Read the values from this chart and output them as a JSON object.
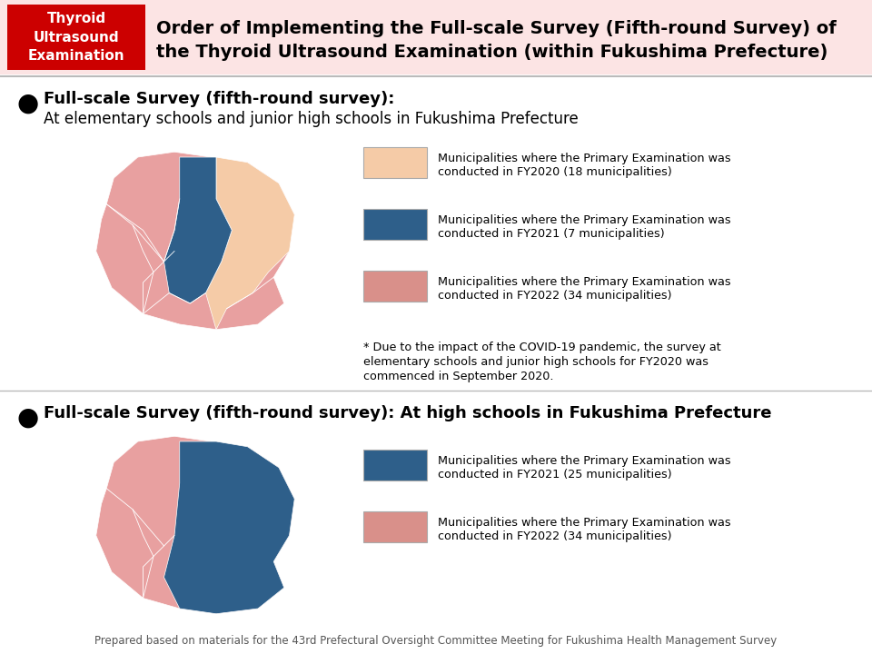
{
  "bg_color": "#ffffff",
  "header_bg": "#fce4e4",
  "header_red_box": "#cc0000",
  "header_red_text": "Thyroid\nUltrasound\nExamination",
  "header_title_line1": "Order of Implementing the Full-scale Survey (Fifth-round Survey) of",
  "header_title_line2": "the Thyroid Ultrasound Examination (within Fukushima Prefecture)",
  "section1_bullet": "●",
  "section1_title": "Full-scale Survey (fifth-round survey):",
  "section1_sub": "At elementary schools and junior high schools in Fukushima Prefecture",
  "legend1": [
    {
      "color": "#f5cba7",
      "label_line1": "Municipalities where the Primary Examination was",
      "label_line2": "conducted in FY2020 (18 municipalities)"
    },
    {
      "color": "#2e5f8a",
      "label_line1": "Municipalities where the Primary Examination was",
      "label_line2": "conducted in FY2021 (7 municipalities)"
    },
    {
      "color": "#d9908a",
      "label_line1": "Municipalities where the Primary Examination was",
      "label_line2": "conducted in FY2022 (34 municipalities)"
    }
  ],
  "note1_line1": "* Due to the impact of the COVID-19 pandemic, the survey at",
  "note1_line2": "elementary schools and junior high schools for FY2020 was",
  "note1_line3": "commenced in September 2020.",
  "section2_bullet": "●",
  "section2_title": "Full-scale Survey (fifth-round survey): At high schools in Fukushima Prefecture",
  "legend2": [
    {
      "color": "#2e5f8a",
      "label_line1": "Municipalities where the Primary Examination was",
      "label_line2": "conducted in FY2021 (25 municipalities)"
    },
    {
      "color": "#d9908a",
      "label_line1": "Municipalities where the Primary Examination was",
      "label_line2": "conducted in FY2022 (34 municipalities)"
    }
  ],
  "footer": "Prepared based on materials for the 43rd Prefectural Oversight Committee Meeting for Fukushima Health Management Survey",
  "map1_pink": "#e8a0a0",
  "map1_peach": "#f5cba7",
  "map1_blue": "#2e5f8a",
  "map2_pink": "#e8a0a0",
  "map2_blue": "#2e5f8a",
  "separator_color": "#bbbbbb"
}
